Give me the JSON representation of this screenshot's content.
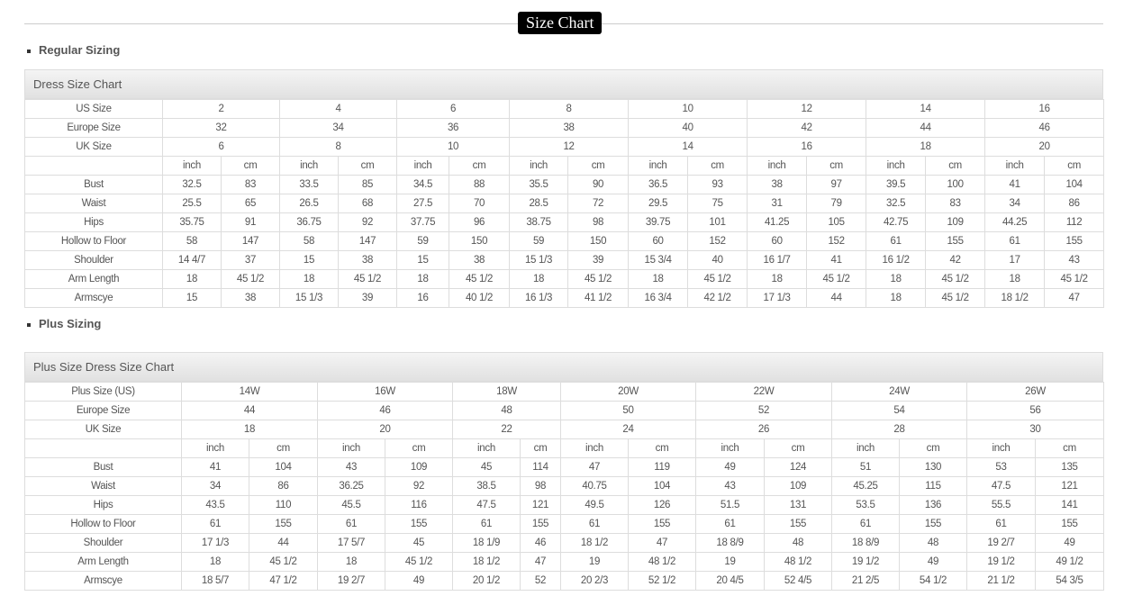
{
  "title": "Size Chart",
  "regular": {
    "section_label": "Regular Sizing",
    "table_title": "Dress Size Chart",
    "colwidths": [
      153,
      65,
      65,
      65,
      65,
      58,
      67,
      65,
      67,
      66,
      66,
      66,
      66,
      66,
      66,
      66,
      66
    ],
    "size_rows": [
      {
        "label": "US Size",
        "values": [
          "2",
          "4",
          "6",
          "8",
          "10",
          "12",
          "14",
          "16"
        ]
      },
      {
        "label": "Europe Size",
        "values": [
          "32",
          "34",
          "36",
          "38",
          "40",
          "42",
          "44",
          "46"
        ]
      },
      {
        "label": "UK Size",
        "values": [
          "6",
          "8",
          "10",
          "12",
          "14",
          "16",
          "18",
          "20"
        ]
      }
    ],
    "units": [
      "inch",
      "cm"
    ],
    "measure_rows": [
      {
        "label": "Bust",
        "values": [
          "32.5",
          "83",
          "33.5",
          "85",
          "34.5",
          "88",
          "35.5",
          "90",
          "36.5",
          "93",
          "38",
          "97",
          "39.5",
          "100",
          "41",
          "104"
        ]
      },
      {
        "label": "Waist",
        "values": [
          "25.5",
          "65",
          "26.5",
          "68",
          "27.5",
          "70",
          "28.5",
          "72",
          "29.5",
          "75",
          "31",
          "79",
          "32.5",
          "83",
          "34",
          "86"
        ]
      },
      {
        "label": "Hips",
        "values": [
          "35.75",
          "91",
          "36.75",
          "92",
          "37.75",
          "96",
          "38.75",
          "98",
          "39.75",
          "101",
          "41.25",
          "105",
          "42.75",
          "109",
          "44.25",
          "112"
        ]
      },
      {
        "label": "Hollow to Floor",
        "values": [
          "58",
          "147",
          "58",
          "147",
          "59",
          "150",
          "59",
          "150",
          "60",
          "152",
          "60",
          "152",
          "61",
          "155",
          "61",
          "155"
        ]
      },
      {
        "label": "Shoulder",
        "values": [
          "14 4/7",
          "37",
          "15",
          "38",
          "15",
          "38",
          "15 1/3",
          "39",
          "15 3/4",
          "40",
          "16 1/7",
          "41",
          "16 1/2",
          "42",
          "17",
          "43"
        ]
      },
      {
        "label": "Arm Length",
        "values": [
          "18",
          "45 1/2",
          "18",
          "45 1/2",
          "18",
          "45 1/2",
          "18",
          "45 1/2",
          "18",
          "45 1/2",
          "18",
          "45 1/2",
          "18",
          "45 1/2",
          "18",
          "45 1/2"
        ]
      },
      {
        "label": "Armscye",
        "values": [
          "15",
          "38",
          "15 1/3",
          "39",
          "16",
          "40 1/2",
          "16 1/3",
          "41 1/2",
          "16 3/4",
          "42 1/2",
          "17 1/3",
          "44",
          "18",
          "45 1/2",
          "18 1/2",
          "47"
        ]
      }
    ]
  },
  "plus": {
    "section_label": "Plus Sizing",
    "table_title": "Plus Size Dress Size Chart",
    "colwidths": [
      174,
      75,
      76,
      75,
      75,
      75,
      45,
      75,
      75,
      76,
      75,
      75,
      75,
      76,
      76
    ],
    "size_rows": [
      {
        "label": "Plus Size (US)",
        "values": [
          "14W",
          "16W",
          "18W",
          "20W",
          "22W",
          "24W",
          "26W"
        ]
      },
      {
        "label": "Europe Size",
        "values": [
          "44",
          "46",
          "48",
          "50",
          "52",
          "54",
          "56"
        ]
      },
      {
        "label": "UK Size",
        "values": [
          "18",
          "20",
          "22",
          "24",
          "26",
          "28",
          "30"
        ]
      }
    ],
    "units": [
      "inch",
      "cm"
    ],
    "measure_rows": [
      {
        "label": "Bust",
        "values": [
          "41",
          "104",
          "43",
          "109",
          "45",
          "114",
          "47",
          "119",
          "49",
          "124",
          "51",
          "130",
          "53",
          "135"
        ]
      },
      {
        "label": "Waist",
        "values": [
          "34",
          "86",
          "36.25",
          "92",
          "38.5",
          "98",
          "40.75",
          "104",
          "43",
          "109",
          "45.25",
          "115",
          "47.5",
          "121"
        ]
      },
      {
        "label": "Hips",
        "values": [
          "43.5",
          "110",
          "45.5",
          "116",
          "47.5",
          "121",
          "49.5",
          "126",
          "51.5",
          "131",
          "53.5",
          "136",
          "55.5",
          "141"
        ]
      },
      {
        "label": "Hollow to Floor",
        "values": [
          "61",
          "155",
          "61",
          "155",
          "61",
          "155",
          "61",
          "155",
          "61",
          "155",
          "61",
          "155",
          "61",
          "155"
        ]
      },
      {
        "label": "Shoulder",
        "values": [
          "17 1/3",
          "44",
          "17 5/7",
          "45",
          "18 1/9",
          "46",
          "18 1/2",
          "47",
          "18 8/9",
          "48",
          "18 8/9",
          "48",
          "19 2/7",
          "49"
        ]
      },
      {
        "label": "Arm Length",
        "values": [
          "18",
          "45 1/2",
          "18",
          "45 1/2",
          "18 1/2",
          "47",
          "19",
          "48 1/2",
          "19",
          "48 1/2",
          "19 1/2",
          "49",
          "19 1/2",
          "49 1/2"
        ]
      },
      {
        "label": "Armscye",
        "values": [
          "18 5/7",
          "47 1/2",
          "19 2/7",
          "49",
          "20 1/2",
          "52",
          "20 2/3",
          "52 1/2",
          "20 4/5",
          "52 4/5",
          "21 2/5",
          "54 1/2",
          "21 1/2",
          "54 3/5"
        ]
      }
    ]
  }
}
